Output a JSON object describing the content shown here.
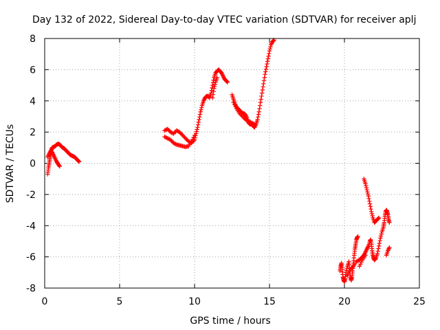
{
  "chart_data": {
    "type": "scatter",
    "title": "Day 132 of 2022, Sidereal Day-to-day VTEC variation (SDTVAR) for receiver aplj",
    "xlabel": "GPS time / hours",
    "ylabel": "SDTVAR / TECUs",
    "xlim": [
      0,
      25
    ],
    "ylim": [
      -8,
      8
    ],
    "xticks": [
      0,
      5,
      10,
      15,
      20,
      25
    ],
    "yticks": [
      -8,
      -6,
      -4,
      -2,
      0,
      2,
      4,
      6,
      8
    ],
    "xtick_labels": [
      "0",
      "5",
      "10",
      "15",
      "20",
      "25"
    ],
    "ytick_labels": [
      "-8",
      "-6",
      "-4",
      "-2",
      "0",
      "2",
      "4",
      "6",
      "8"
    ],
    "grid": true,
    "marker": "+",
    "color": "#ff0000",
    "series": [
      {
        "name": "SDTVAR",
        "segments": [
          [
            [
              0.2,
              -0.7
            ],
            [
              0.25,
              -0.3
            ],
            [
              0.3,
              0.0
            ],
            [
              0.35,
              0.3
            ],
            [
              0.4,
              0.6
            ],
            [
              0.45,
              0.85
            ],
            [
              0.5,
              1.0
            ],
            [
              0.6,
              1.05
            ],
            [
              0.7,
              1.1
            ],
            [
              0.8,
              1.2
            ],
            [
              0.9,
              1.25
            ],
            [
              1.0,
              1.2
            ],
            [
              1.1,
              1.1
            ],
            [
              1.2,
              1.0
            ],
            [
              1.3,
              0.95
            ],
            [
              1.4,
              0.85
            ],
            [
              1.5,
              0.75
            ],
            [
              1.6,
              0.65
            ],
            [
              1.7,
              0.55
            ],
            [
              1.8,
              0.5
            ],
            [
              1.9,
              0.45
            ],
            [
              2.0,
              0.4
            ],
            [
              2.1,
              0.3
            ],
            [
              2.2,
              0.2
            ],
            [
              2.3,
              0.1
            ]
          ],
          [
            [
              0.2,
              0.4
            ],
            [
              0.3,
              0.6
            ],
            [
              0.4,
              0.8
            ],
            [
              0.5,
              0.7
            ],
            [
              0.6,
              0.5
            ],
            [
              0.7,
              0.3
            ],
            [
              0.8,
              0.1
            ],
            [
              0.9,
              -0.05
            ],
            [
              1.0,
              -0.2
            ]
          ],
          [
            [
              8.0,
              2.1
            ],
            [
              8.2,
              2.2
            ],
            [
              8.4,
              2.0
            ],
            [
              8.6,
              1.9
            ],
            [
              8.8,
              2.1
            ],
            [
              9.0,
              2.0
            ],
            [
              9.2,
              1.8
            ],
            [
              9.4,
              1.6
            ],
            [
              9.6,
              1.4
            ],
            [
              9.8,
              1.3
            ],
            [
              10.0,
              1.5
            ],
            [
              10.1,
              1.9
            ],
            [
              10.2,
              2.3
            ],
            [
              10.3,
              2.8
            ],
            [
              10.4,
              3.3
            ],
            [
              10.5,
              3.7
            ],
            [
              10.6,
              4.0
            ],
            [
              10.7,
              4.2
            ],
            [
              10.8,
              4.3
            ],
            [
              10.9,
              4.3
            ],
            [
              11.0,
              4.2
            ],
            [
              11.1,
              4.5
            ],
            [
              11.2,
              5.0
            ],
            [
              11.3,
              5.5
            ],
            [
              11.4,
              5.8
            ],
            [
              11.5,
              5.9
            ],
            [
              11.6,
              6.0
            ],
            [
              11.7,
              5.9
            ],
            [
              11.8,
              5.8
            ],
            [
              11.9,
              5.6
            ],
            [
              12.0,
              5.4
            ],
            [
              12.1,
              5.3
            ],
            [
              12.2,
              5.2
            ]
          ],
          [
            [
              8.0,
              1.7
            ],
            [
              8.2,
              1.6
            ],
            [
              8.4,
              1.5
            ],
            [
              8.6,
              1.3
            ],
            [
              8.8,
              1.2
            ],
            [
              9.0,
              1.15
            ],
            [
              9.2,
              1.1
            ],
            [
              9.4,
              1.05
            ],
            [
              9.6,
              1.1
            ],
            [
              9.8,
              1.4
            ],
            [
              10.0,
              1.8
            ]
          ],
          [
            [
              11.2,
              4.2
            ],
            [
              11.3,
              4.8
            ],
            [
              11.4,
              5.2
            ],
            [
              11.5,
              5.5
            ]
          ],
          [
            [
              12.5,
              4.4
            ],
            [
              12.6,
              4.1
            ],
            [
              12.7,
              3.8
            ],
            [
              12.8,
              3.6
            ],
            [
              12.9,
              3.5
            ],
            [
              13.0,
              3.4
            ],
            [
              13.1,
              3.3
            ],
            [
              13.2,
              3.2
            ],
            [
              13.3,
              3.2
            ],
            [
              13.4,
              3.1
            ],
            [
              13.5,
              2.9
            ],
            [
              13.6,
              2.6
            ],
            [
              13.7,
              2.5
            ],
            [
              13.8,
              2.5
            ],
            [
              13.9,
              2.4
            ],
            [
              14.0,
              2.3
            ],
            [
              14.1,
              2.5
            ],
            [
              14.2,
              2.8
            ],
            [
              14.3,
              3.3
            ],
            [
              14.4,
              3.9
            ],
            [
              14.5,
              4.5
            ],
            [
              14.6,
              5.1
            ],
            [
              14.7,
              5.7
            ],
            [
              14.8,
              6.2
            ],
            [
              14.9,
              6.7
            ],
            [
              15.0,
              7.2
            ],
            [
              15.1,
              7.6
            ],
            [
              15.2,
              7.8
            ],
            [
              15.3,
              7.9
            ]
          ],
          [
            [
              12.6,
              3.9
            ],
            [
              12.8,
              3.5
            ],
            [
              13.0,
              3.2
            ],
            [
              13.2,
              3.0
            ],
            [
              13.4,
              2.8
            ],
            [
              13.6,
              2.7
            ],
            [
              13.8,
              2.6
            ],
            [
              14.0,
              2.5
            ]
          ],
          [
            [
              19.7,
              -6.9
            ],
            [
              19.75,
              -6.6
            ],
            [
              19.8,
              -6.4
            ],
            [
              19.85,
              -6.8
            ],
            [
              19.9,
              -7.3
            ],
            [
              19.95,
              -7.5
            ],
            [
              20.0,
              -7.6
            ],
            [
              20.05,
              -7.4
            ],
            [
              20.1,
              -7.0
            ],
            [
              20.2,
              -6.6
            ],
            [
              20.3,
              -6.3
            ],
            [
              20.35,
              -6.9
            ],
            [
              20.4,
              -7.3
            ],
            [
              20.45,
              -7.5
            ],
            [
              20.5,
              -7.3
            ],
            [
              20.55,
              -6.9
            ],
            [
              20.6,
              -6.4
            ],
            [
              20.65,
              -5.9
            ],
            [
              20.7,
              -5.5
            ],
            [
              20.75,
              -5.2
            ],
            [
              20.8,
              -4.9
            ],
            [
              20.85,
              -4.75
            ],
            [
              20.9,
              -4.7
            ]
          ],
          [
            [
              20.2,
              -7.2
            ],
            [
              20.4,
              -6.8
            ],
            [
              20.6,
              -6.6
            ],
            [
              20.8,
              -6.3
            ],
            [
              21.0,
              -6.2
            ],
            [
              21.1,
              -6.1
            ],
            [
              21.2,
              -6.0
            ],
            [
              21.3,
              -5.9
            ],
            [
              21.4,
              -5.7
            ],
            [
              21.5,
              -5.5
            ],
            [
              21.6,
              -5.3
            ],
            [
              21.7,
              -5.0
            ],
            [
              21.75,
              -4.9
            ],
            [
              21.8,
              -5.2
            ],
            [
              21.85,
              -5.6
            ],
            [
              21.9,
              -5.9
            ],
            [
              21.95,
              -6.1
            ],
            [
              22.0,
              -6.2
            ],
            [
              22.1,
              -6.1
            ],
            [
              22.2,
              -5.8
            ],
            [
              22.3,
              -5.3
            ],
            [
              22.4,
              -4.8
            ],
            [
              22.5,
              -4.4
            ],
            [
              22.6,
              -4.1
            ],
            [
              22.65,
              -3.8
            ],
            [
              22.7,
              -3.4
            ],
            [
              22.75,
              -3.1
            ],
            [
              22.8,
              -3.0
            ],
            [
              22.85,
              -3.1
            ],
            [
              22.9,
              -3.3
            ],
            [
              22.95,
              -3.6
            ],
            [
              23.0,
              -3.8
            ]
          ],
          [
            [
              21.3,
              -1.0
            ],
            [
              21.4,
              -1.3
            ],
            [
              21.5,
              -1.7
            ],
            [
              21.6,
              -2.1
            ],
            [
              21.7,
              -2.6
            ],
            [
              21.8,
              -3.1
            ],
            [
              21.9,
              -3.5
            ],
            [
              22.0,
              -3.8
            ],
            [
              22.1,
              -3.7
            ],
            [
              22.2,
              -3.6
            ],
            [
              22.3,
              -3.5
            ]
          ],
          [
            [
              21.0,
              -6.6
            ],
            [
              21.2,
              -6.2
            ],
            [
              21.4,
              -5.9
            ]
          ],
          [
            [
              22.8,
              -5.9
            ],
            [
              22.9,
              -5.6
            ],
            [
              23.0,
              -5.4
            ]
          ]
        ]
      }
    ]
  }
}
